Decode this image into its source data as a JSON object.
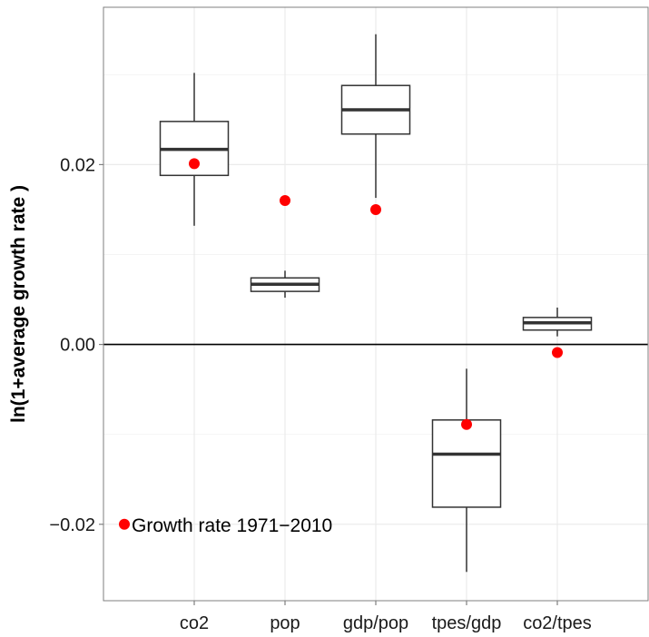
{
  "chart_data": {
    "type": "box",
    "title": "",
    "xlabel": "",
    "ylabel": "ln(1+average growth rate )",
    "categories": [
      "co2",
      "pop",
      "gdp/pop",
      "tpes/gdp",
      "co2/tpes"
    ],
    "boxes": [
      {
        "category": "co2",
        "min": 0.0132,
        "q1": 0.0188,
        "median": 0.0217,
        "q3": 0.0248,
        "max": 0.0302
      },
      {
        "category": "pop",
        "min": 0.0052,
        "q1": 0.0059,
        "median": 0.0067,
        "q3": 0.0074,
        "max": 0.0082
      },
      {
        "category": "gdp/pop",
        "min": 0.0163,
        "q1": 0.0234,
        "median": 0.0261,
        "q3": 0.0288,
        "max": 0.0345
      },
      {
        "category": "tpes/gdp",
        "min": -0.0253,
        "q1": -0.0181,
        "median": -0.0122,
        "q3": -0.0084,
        "max": -0.0027
      },
      {
        "category": "co2/tpes",
        "min": 0.0009,
        "q1": 0.0016,
        "median": 0.0024,
        "q3": 0.003,
        "max": 0.0041
      }
    ],
    "points": {
      "name": "Growth rate 1971−2010",
      "color": "#ff0000",
      "values": [
        0.0201,
        0.016,
        0.015,
        -0.0089,
        -0.0009
      ]
    },
    "ylim": [
      -0.0285,
      0.0375
    ],
    "yticks": [
      -0.02,
      0.0,
      0.02
    ],
    "ytick_labels": [
      "−0.02",
      "0.00",
      "0.02"
    ],
    "hline": 0.0,
    "grid": true,
    "legend": {
      "label": "Growth rate 1971−2010",
      "position": "bottom-left",
      "x": 0.45,
      "y": -0.02
    }
  }
}
